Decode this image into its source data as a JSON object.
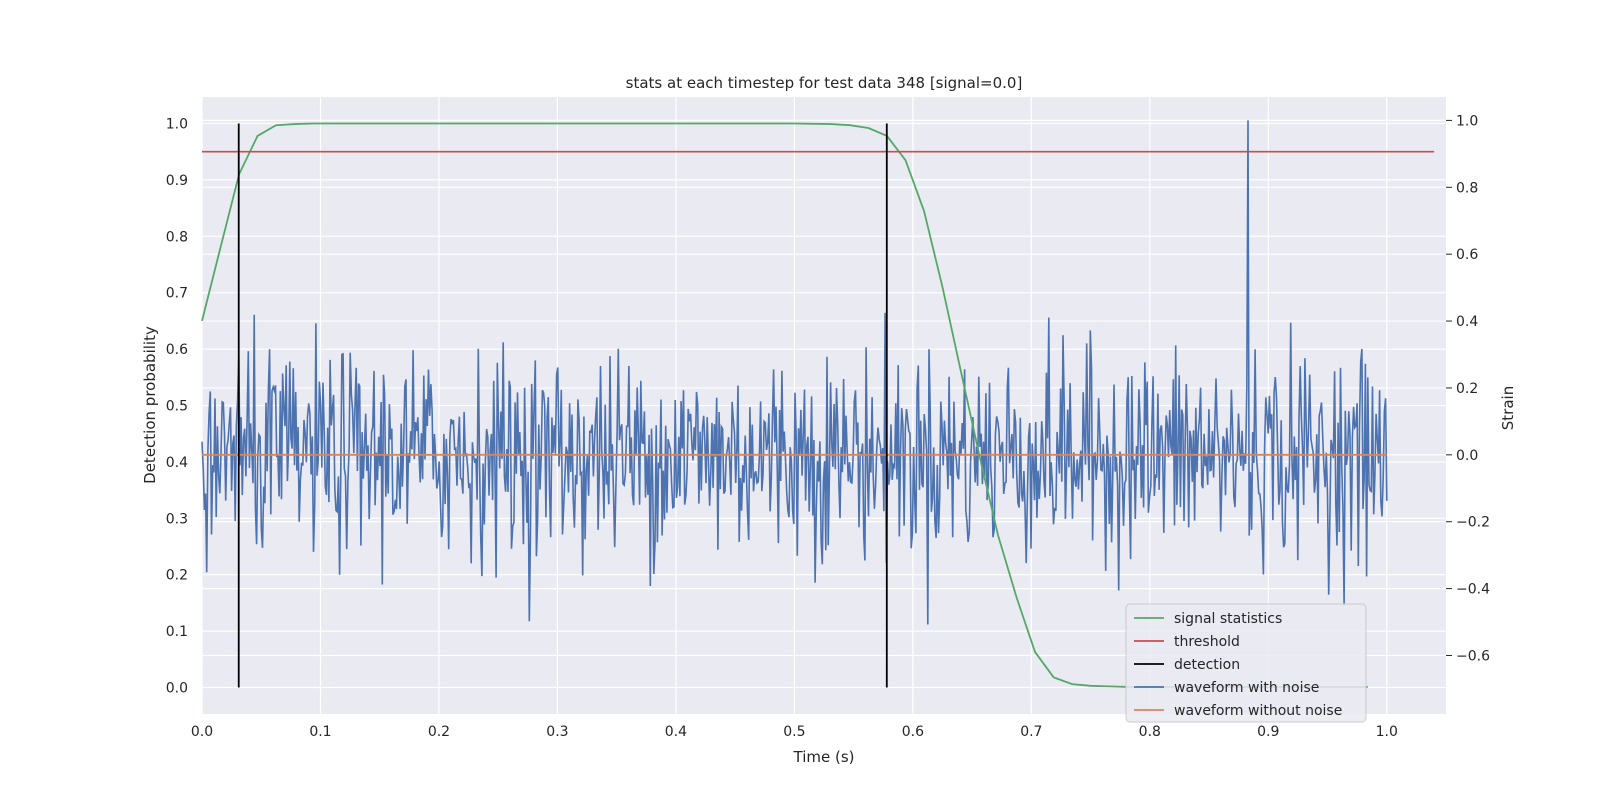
{
  "chart_data": {
    "type": "line",
    "title": "stats at each timestep for test data 348 [signal=0.0]",
    "xlabel": "Time (s)",
    "ylabel": "Detection probability",
    "ylabel_right": "Strain",
    "xlim": [
      0.0,
      1.05
    ],
    "ylim": [
      -0.047,
      1.047
    ],
    "ylim_right": [
      -0.775,
      1.07
    ],
    "xticks": [
      "0.0",
      "0.1",
      "0.2",
      "0.3",
      "0.4",
      "0.5",
      "0.6",
      "0.7",
      "0.8",
      "0.9",
      "1.0"
    ],
    "xtick_values": [
      0.0,
      0.1,
      0.2,
      0.3,
      0.4,
      0.5,
      0.6,
      0.7,
      0.8,
      0.9,
      1.0
    ],
    "yticks": [
      "0.0",
      "0.1",
      "0.2",
      "0.3",
      "0.4",
      "0.5",
      "0.6",
      "0.7",
      "0.8",
      "0.9",
      "1.0"
    ],
    "ytick_values": [
      0.0,
      0.1,
      0.2,
      0.3,
      0.4,
      0.5,
      0.6,
      0.7,
      0.8,
      0.9,
      1.0
    ],
    "yticks_right": [
      "−0.6",
      "−0.4",
      "−0.2",
      "0.0",
      "0.2",
      "0.4",
      "0.6",
      "0.8",
      "1.0"
    ],
    "ytick_right_values": [
      -0.6,
      -0.4,
      -0.2,
      0.0,
      0.2,
      0.4,
      0.6,
      0.8,
      1.0
    ],
    "grid": true,
    "legend_position": "lower-right",
    "legend": [
      {
        "label": "signal statistics",
        "color": "#55a868"
      },
      {
        "label": "threshold",
        "color": "#c44e52"
      },
      {
        "label": "detection",
        "color": "#000000"
      },
      {
        "label": "waveform with noise",
        "color": "#4c72b0"
      },
      {
        "label": "waveform without noise",
        "color": "#dd8452"
      }
    ],
    "series": [
      {
        "name": "signal statistics",
        "axis": "left",
        "color": "#55a868",
        "x": [
          0.0,
          0.0156,
          0.0313,
          0.0469,
          0.0625,
          0.0781,
          0.0938,
          0.1094,
          0.125,
          0.2,
          0.3,
          0.4,
          0.5,
          0.5313,
          0.5469,
          0.5625,
          0.5781,
          0.5938,
          0.6094,
          0.625,
          0.6406,
          0.6563,
          0.6719,
          0.6875,
          0.7031,
          0.7188,
          0.7344,
          0.75,
          0.7656,
          0.7813,
          0.8,
          0.9,
          0.95,
          0.984
        ],
        "y": [
          0.65,
          0.78,
          0.91,
          0.978,
          0.997,
          0.999,
          1.0,
          1.0,
          1.0,
          1.0,
          1.0,
          1.0,
          1.0,
          0.999,
          0.997,
          0.992,
          0.978,
          0.935,
          0.845,
          0.71,
          0.56,
          0.41,
          0.27,
          0.16,
          0.063,
          0.018,
          0.006,
          0.003,
          0.002,
          0.001,
          0.001,
          0.001,
          0.001,
          0.001
        ]
      },
      {
        "name": "threshold",
        "axis": "left",
        "color": "#c44e52",
        "x": [
          0.0,
          1.04
        ],
        "y": [
          0.95,
          0.95
        ]
      },
      {
        "name": "detection",
        "axis": "left",
        "color": "#000000",
        "type": "vlines",
        "x": [
          0.031,
          0.578
        ],
        "ymin": 0.0,
        "ymax": 1.0
      },
      {
        "name": "waveform with noise",
        "axis": "right",
        "color": "#4c72b0",
        "x_start": 0.0,
        "x_end": 1.0,
        "sample_count": 1000,
        "noise_std": 0.15,
        "y_min": -0.69,
        "y_max": 1.0,
        "peak_x": 0.883,
        "peak_y": 1.0
      },
      {
        "name": "waveform without noise",
        "axis": "right",
        "color": "#dd8452",
        "x": [
          0.0,
          1.0
        ],
        "y": [
          0.0,
          0.0
        ]
      }
    ]
  }
}
